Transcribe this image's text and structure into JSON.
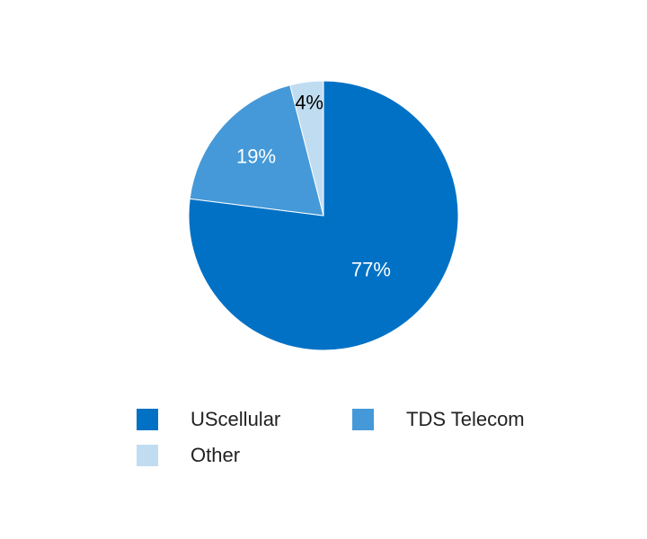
{
  "chart_data": {
    "type": "pie",
    "title": "",
    "categories": [
      "UScellular",
      "TDS Telecom",
      "Other"
    ],
    "values": [
      77,
      19,
      4
    ],
    "labels": [
      "77%",
      "19%",
      "4%"
    ],
    "colors": [
      "#0071c5",
      "#4599d8",
      "#c0dcf1"
    ],
    "label_colors": [
      "#ffffff",
      "#ffffff",
      "#000000"
    ],
    "start_angle_deg": 0,
    "direction": "clockwise",
    "legend_position": "bottom"
  }
}
